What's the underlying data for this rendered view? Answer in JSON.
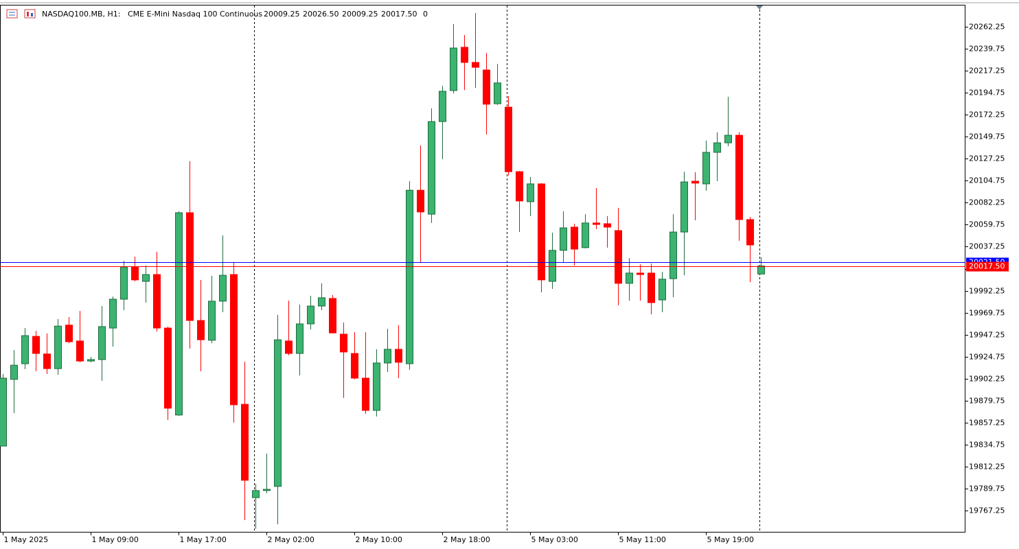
{
  "header": {
    "symbol": "NASDAQ100.MB, H1:",
    "description": "CME E-Mini Nasdaq 100 Continuous",
    "ohlc": [
      "20009.25",
      "20026.50",
      "20009.25",
      "20017.50"
    ],
    "volume": "0"
  },
  "chart_data": {
    "type": "candlestick",
    "categories": [
      "1 May 2025",
      null,
      null,
      null,
      null,
      null,
      null,
      null,
      "1 May 09:00",
      null,
      null,
      null,
      null,
      null,
      null,
      null,
      "1 May 17:00",
      null,
      null,
      null,
      null,
      null,
      null,
      null,
      "2 May 02:00",
      null,
      null,
      null,
      null,
      null,
      null,
      null,
      "2 May 10:00",
      null,
      null,
      null,
      null,
      null,
      null,
      null,
      "2 May 18:00",
      null,
      null,
      null,
      null,
      null,
      null,
      null,
      "5 May 03:00",
      null,
      null,
      null,
      null,
      null,
      null,
      null,
      "5 May 11:00",
      null,
      null,
      null,
      null,
      null,
      null,
      null,
      "5 May 19:00",
      null,
      null,
      null,
      null,
      null
    ],
    "open": [
      19833.25,
      19901.5,
      19917.5,
      19945.5,
      19927.5,
      19912.5,
      19957.0,
      19940.75,
      19920.25,
      19921.75,
      19954.0,
      19983.5,
      20016.5,
      20001.75,
      20008.75,
      19954.0,
      19865.0,
      20072.0,
      19961.75,
      19941.5,
      19981.5,
      20008.75,
      19876.0,
      19780.5,
      19787.75,
      19792.0,
      19940.75,
      19928.0,
      19958.25,
      19976.5,
      19984.25,
      19947.75,
      19928.0,
      19902.75,
      19869.75,
      19918.25,
      19932.25,
      19917.5,
      20095.0,
      20070.5,
      20165.25,
      20197.0,
      20241.25,
      20225.75,
      20218.0,
      20183.5,
      20180.0,
      20114.0,
      20083.25,
      20101.5,
      20001.75,
      20033.5,
      20057.25,
      20036.25,
      20061.5,
      20060.75,
      20053.75,
      19999.75,
      20010.25,
      20010.25,
      19982.75,
      20004.5,
      20052.25,
      20104.25,
      20101.5,
      20133.75,
      20143.5,
      20151.25,
      20065.0,
      20009.25
    ],
    "high": [
      19907.0,
      19931.5,
      19954.0,
      19951.25,
      19948.5,
      19963.25,
      19965.25,
      19971.5,
      19924.5,
      19976.5,
      19986.25,
      20022.75,
      20027.0,
      20018.0,
      20032.0,
      19955.5,
      20073.5,
      20124.75,
      20003.25,
      20007.5,
      20048.75,
      20021.5,
      19919.5,
      19794.75,
      19825.5,
      19967.5,
      19982.0,
      19978.0,
      19987.0,
      19999.75,
      19987.75,
      19959.75,
      19949.75,
      19949.75,
      19932.25,
      19953.25,
      19957.0,
      20104.25,
      20140.75,
      20178.75,
      20201.75,
      20265.0,
      20253.75,
      20276.25,
      20235.5,
      20224.25,
      20191.25,
      20114.75,
      20108.5,
      20102.25,
      20051.5,
      20073.5,
      20060.75,
      20070.5,
      20097.25,
      20068.5,
      20077.0,
      20025.5,
      20019.25,
      20020.0,
      20011.5,
      20070.5,
      20114.0,
      20113.5,
      20145.75,
      20154.25,
      20190.5,
      20154.25,
      20067.75,
      20026.5
    ],
    "low": [
      19833.25,
      19867.0,
      19912.0,
      19909.75,
      19907.0,
      19906.25,
      19938.5,
      19919.0,
      19919.0,
      19900.0,
      19935.0,
      19972.25,
      20001.75,
      19980.0,
      19950.5,
      19860.0,
      19864.25,
      19933.0,
      19909.75,
      19938.5,
      19970.25,
      19857.25,
      19757.5,
      19748.5,
      19785.0,
      19753.25,
      19926.0,
      19905.5,
      19952.5,
      19972.25,
      19948.5,
      19882.5,
      19901.5,
      19866.25,
      19863.5,
      19909.0,
      19902.75,
      19911.25,
      20020.75,
      20061.5,
      20126.75,
      20194.0,
      20197.5,
      20199.75,
      20152.0,
      20182.25,
      20110.0,
      20052.25,
      20068.5,
      19990.5,
      19994.0,
      20020.75,
      20018.0,
      20035.5,
      20055.25,
      20036.25,
      19977.25,
      19982.0,
      19982.0,
      19968.0,
      19970.25,
      19985.5,
      20008.0,
      20064.25,
      20094.5,
      20104.25,
      20140.0,
      20043.25,
      20001.0,
      20009.25
    ],
    "close": [
      19902.75,
      19916.0,
      19946.25,
      19928.0,
      19912.5,
      19956.0,
      19940.0,
      19920.25,
      19921.75,
      19955.5,
      19983.5,
      20016.5,
      20003.25,
      20008.75,
      19954.0,
      19872.0,
      20072.0,
      19961.75,
      19942.0,
      19981.5,
      20008.0,
      19875.5,
      19798.25,
      19787.75,
      19789.0,
      19942.0,
      19928.0,
      19958.25,
      19976.5,
      19985.0,
      19949.0,
      19929.5,
      19902.75,
      19869.75,
      19918.25,
      19932.25,
      19919.0,
      20095.0,
      20072.75,
      20165.25,
      20196.25,
      20240.5,
      20225.75,
      20220.75,
      20183.0,
      20204.75,
      20114.0,
      20084.0,
      20101.5,
      20003.25,
      20033.5,
      20056.5,
      20034.75,
      20061.5,
      20060.0,
      20057.25,
      19999.75,
      20010.25,
      20008.75,
      19980.0,
      20004.0,
      20052.25,
      20103.5,
      20102.25,
      20133.75,
      20143.5,
      20151.25,
      20065.0,
      20039.0,
      20017.5
    ],
    "up_color": "#3cb371",
    "down_color": "#ff0000",
    "ylim": [
      19745.5,
      20284
    ],
    "yticks": [
      19767.25,
      19789.75,
      19812.25,
      19834.75,
      19857.25,
      19879.75,
      19902.25,
      19924.75,
      19947.25,
      19969.75,
      19992.25,
      20014.75,
      20037.25,
      20059.75,
      20082.25,
      20104.75,
      20127.25,
      20149.75,
      20172.25,
      20194.75,
      20217.25,
      20239.75,
      20262.25
    ],
    "ask_line": {
      "value": 20021.5,
      "label": "20021.50",
      "color": "#0000ff"
    },
    "bid_line": {
      "value": 20017.5,
      "label": "20017.50",
      "color": "#ff0000"
    }
  }
}
